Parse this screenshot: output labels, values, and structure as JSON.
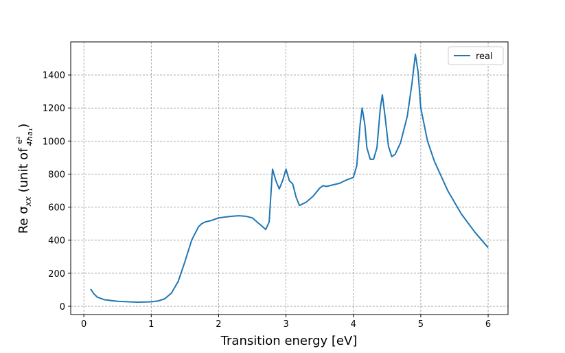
{
  "chart_data": {
    "type": "line",
    "xlabel": "Transition energy [eV]",
    "ylabel": {
      "text": "Re σ",
      "sub": "xx",
      "open": " (unit of ",
      "frac_num": "e²",
      "frac_den": "4ħa₁",
      "close": ")"
    },
    "x": [
      0.1,
      0.15,
      0.2,
      0.3,
      0.5,
      0.8,
      1.0,
      1.1,
      1.2,
      1.3,
      1.4,
      1.5,
      1.6,
      1.7,
      1.75,
      1.8,
      1.9,
      2.0,
      2.1,
      2.2,
      2.3,
      2.4,
      2.5,
      2.6,
      2.7,
      2.75,
      2.8,
      2.85,
      2.9,
      2.95,
      3.0,
      3.05,
      3.1,
      3.15,
      3.2,
      3.3,
      3.4,
      3.5,
      3.55,
      3.6,
      3.7,
      3.8,
      3.9,
      4.0,
      4.05,
      4.1,
      4.13,
      4.17,
      4.2,
      4.25,
      4.3,
      4.35,
      4.4,
      4.43,
      4.47,
      4.52,
      4.57,
      4.62,
      4.7,
      4.8,
      4.87,
      4.92,
      4.96,
      5.0,
      5.1,
      5.2,
      5.4,
      5.6,
      5.8,
      6.0
    ],
    "series": [
      {
        "name": "real",
        "color": "#1f77b4",
        "values": [
          105,
          75,
          55,
          40,
          30,
          25,
          27,
          32,
          45,
          80,
          150,
          270,
          400,
          480,
          500,
          510,
          520,
          535,
          540,
          545,
          548,
          545,
          535,
          500,
          465,
          510,
          830,
          760,
          710,
          760,
          830,
          760,
          740,
          660,
          610,
          630,
          665,
          715,
          730,
          725,
          735,
          745,
          765,
          780,
          850,
          1100,
          1200,
          1100,
          960,
          890,
          890,
          960,
          1200,
          1280,
          1150,
          970,
          905,
          920,
          990,
          1150,
          1350,
          1525,
          1420,
          1200,
          1000,
          880,
          700,
          560,
          450,
          355
        ]
      }
    ],
    "xlim": [
      -0.195,
      6.295
    ],
    "ylim": [
      -50,
      1600
    ],
    "xticks": [
      0,
      1,
      2,
      3,
      4,
      5,
      6
    ],
    "yticks": [
      0,
      200,
      400,
      600,
      800,
      1000,
      1200,
      1400
    ],
    "grid": true,
    "legend": "upper right"
  }
}
